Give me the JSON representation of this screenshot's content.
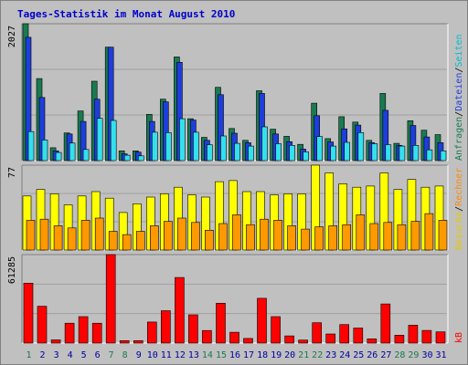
{
  "title": "Tages-Statistik im Monat August 2010",
  "chart_data": [
    {
      "type": "bar",
      "name": "requests",
      "max_label": "2027",
      "ymax": 2027,
      "categories": [
        "1",
        "2",
        "3",
        "4",
        "5",
        "6",
        "7",
        "8",
        "9",
        "10",
        "11",
        "12",
        "13",
        "14",
        "15",
        "16",
        "17",
        "18",
        "19",
        "20",
        "21",
        "22",
        "23",
        "24",
        "25",
        "26",
        "27",
        "28",
        "29",
        "30",
        "31"
      ],
      "weekend_days": [
        "1",
        "7",
        "8",
        "14",
        "15",
        "21",
        "22",
        "28",
        "29"
      ],
      "series": [
        {
          "name": "Anfragen",
          "color": "#1a7a50",
          "values": [
            2027,
            1215,
            190,
            410,
            735,
            1175,
            1680,
            145,
            145,
            685,
            910,
            1535,
            620,
            345,
            1085,
            475,
            300,
            1035,
            465,
            360,
            240,
            850,
            325,
            650,
            570,
            300,
            995,
            255,
            590,
            450,
            385
          ]
        },
        {
          "name": "Dateien",
          "color": "#1e3edb",
          "values": [
            1825,
            935,
            145,
            395,
            580,
            910,
            1680,
            100,
            125,
            580,
            870,
            1455,
            600,
            300,
            975,
            405,
            265,
            995,
            395,
            280,
            170,
            665,
            275,
            470,
            525,
            265,
            745,
            225,
            520,
            350,
            265
          ]
        },
        {
          "name": "Seiten",
          "color": "#33e0ee",
          "values": [
            430,
            305,
            120,
            260,
            165,
            625,
            595,
            80,
            70,
            420,
            415,
            620,
            420,
            235,
            365,
            255,
            215,
            500,
            250,
            225,
            130,
            355,
            215,
            270,
            415,
            250,
            235,
            215,
            225,
            160,
            145
          ]
        }
      ]
    },
    {
      "type": "bar",
      "name": "visits",
      "max_label": "77",
      "ymax": 77,
      "categories": [
        "1",
        "2",
        "3",
        "4",
        "5",
        "6",
        "7",
        "8",
        "9",
        "10",
        "11",
        "12",
        "13",
        "14",
        "15",
        "16",
        "17",
        "18",
        "19",
        "20",
        "21",
        "22",
        "23",
        "24",
        "25",
        "26",
        "27",
        "28",
        "29",
        "30",
        "31"
      ],
      "series": [
        {
          "name": "Besuche",
          "color": "#ffff00",
          "values": [
            49,
            55,
            51,
            41,
            49,
            53,
            47,
            34,
            42,
            48,
            51,
            57,
            50,
            48,
            62,
            63,
            53,
            53,
            50,
            51,
            51,
            77,
            70,
            60,
            57,
            58,
            70,
            55,
            64,
            57,
            58
          ]
        },
        {
          "name": "Rechner",
          "color": "#ff9900",
          "values": [
            27,
            28,
            22,
            20,
            27,
            29,
            17,
            14,
            17,
            22,
            26,
            29,
            25,
            18,
            24,
            32,
            23,
            28,
            27,
            22,
            19,
            21,
            22,
            23,
            32,
            24,
            25,
            23,
            26,
            33,
            27
          ]
        }
      ]
    },
    {
      "type": "bar",
      "name": "kb",
      "max_label": "61285",
      "ymax": 61285,
      "categories": [
        "1",
        "2",
        "3",
        "4",
        "5",
        "6",
        "7",
        "8",
        "9",
        "10",
        "11",
        "12",
        "13",
        "14",
        "15",
        "16",
        "17",
        "18",
        "19",
        "20",
        "21",
        "22",
        "23",
        "24",
        "25",
        "26",
        "27",
        "28",
        "29",
        "30",
        "31"
      ],
      "series": [
        {
          "name": "kB",
          "color": "#ff0000",
          "values": [
            41500,
            25500,
            2200,
            13800,
            18300,
            13800,
            61285,
            1700,
            1700,
            14600,
            22400,
            45400,
            19600,
            8700,
            27600,
            7500,
            3200,
            31000,
            18300,
            5000,
            2100,
            14100,
            6300,
            12800,
            10400,
            3000,
            27100,
            5500,
            12400,
            8800,
            7800
          ]
        }
      ]
    }
  ],
  "right_labels": [
    {
      "text": "Anfragen",
      "color": "#1a7a50"
    },
    {
      "text": "Dateien",
      "color": "#1e3edb"
    },
    {
      "text": "Seiten",
      "color": "#00bbcc"
    },
    {
      "text": "Besuche",
      "color": "#e8c800"
    },
    {
      "text": "Rechner",
      "color": "#ff8800"
    },
    {
      "text": "kB",
      "color": "#ff0000"
    }
  ],
  "separator": "/",
  "day_label_colors": {
    "weekday": "#0000a0",
    "weekend": "#1a7a50"
  }
}
